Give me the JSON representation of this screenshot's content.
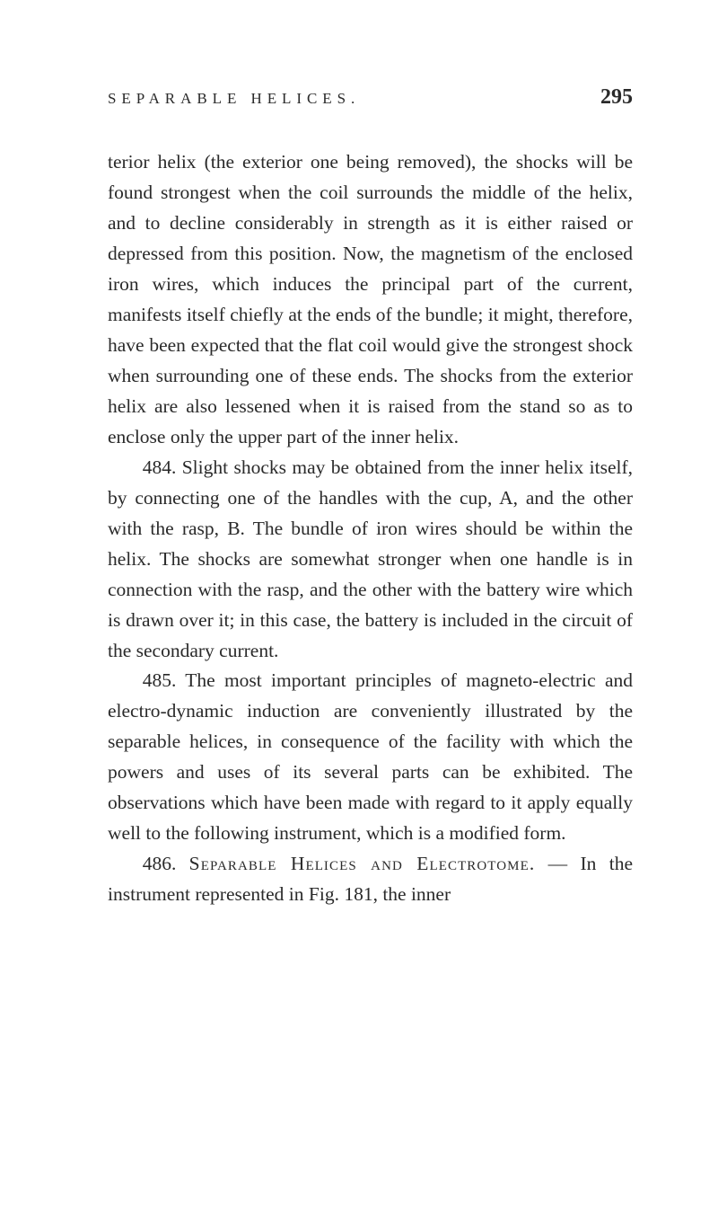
{
  "page": {
    "running_title": "SEPARABLE HELICES.",
    "page_number": "295",
    "background_color": "#ffffff",
    "text_color": "#2a2a2a",
    "font_family": "Georgia, 'Times New Roman', serif",
    "body_fontsize": 21.5,
    "line_height": 1.58,
    "header_fontsize": 17,
    "page_number_fontsize": 24
  },
  "paragraphs": {
    "p1": "terior helix (the exterior one being removed), the shocks will be found strongest when the coil surrounds the middle of the helix, and to decline considerably in strength as it is either raised or depressed from this position. Now, the magnetism of the enclosed iron wires, which induces the principal part of the current, manifests itself chiefly at the ends of the bundle; it might, therefore, have been expected that the flat coil would give the strongest shock when surrounding one of these ends. The shocks from the exterior helix are also lessened when it is raised from the stand so as to enclose only the upper part of the inner helix.",
    "p2": "484. Slight shocks may be obtained from the inner helix itself, by connecting one of the handles with the cup, A, and the other with the rasp, B. The bundle of iron wires should be within the helix. The shocks are somewhat stronger when one handle is in connection with the rasp, and the other with the battery wire which is drawn over it; in this case, the battery is included in the circuit of the secondary current.",
    "p3": "485. The most important principles of magneto-electric and electro-dynamic induction are conveniently illustrated by the separable helices, in consequence of the facility with which the powers and uses of its several parts can be exhibited. The observations which have been made with regard to it apply equally well to the following instrument, which is a modified form.",
    "p4_prefix": "486. ",
    "p4_title": "Separable Helices and Electrotome.",
    "p4_dash": " — ",
    "p4_tail": "In the instrument represented in Fig. 181, the inner"
  }
}
